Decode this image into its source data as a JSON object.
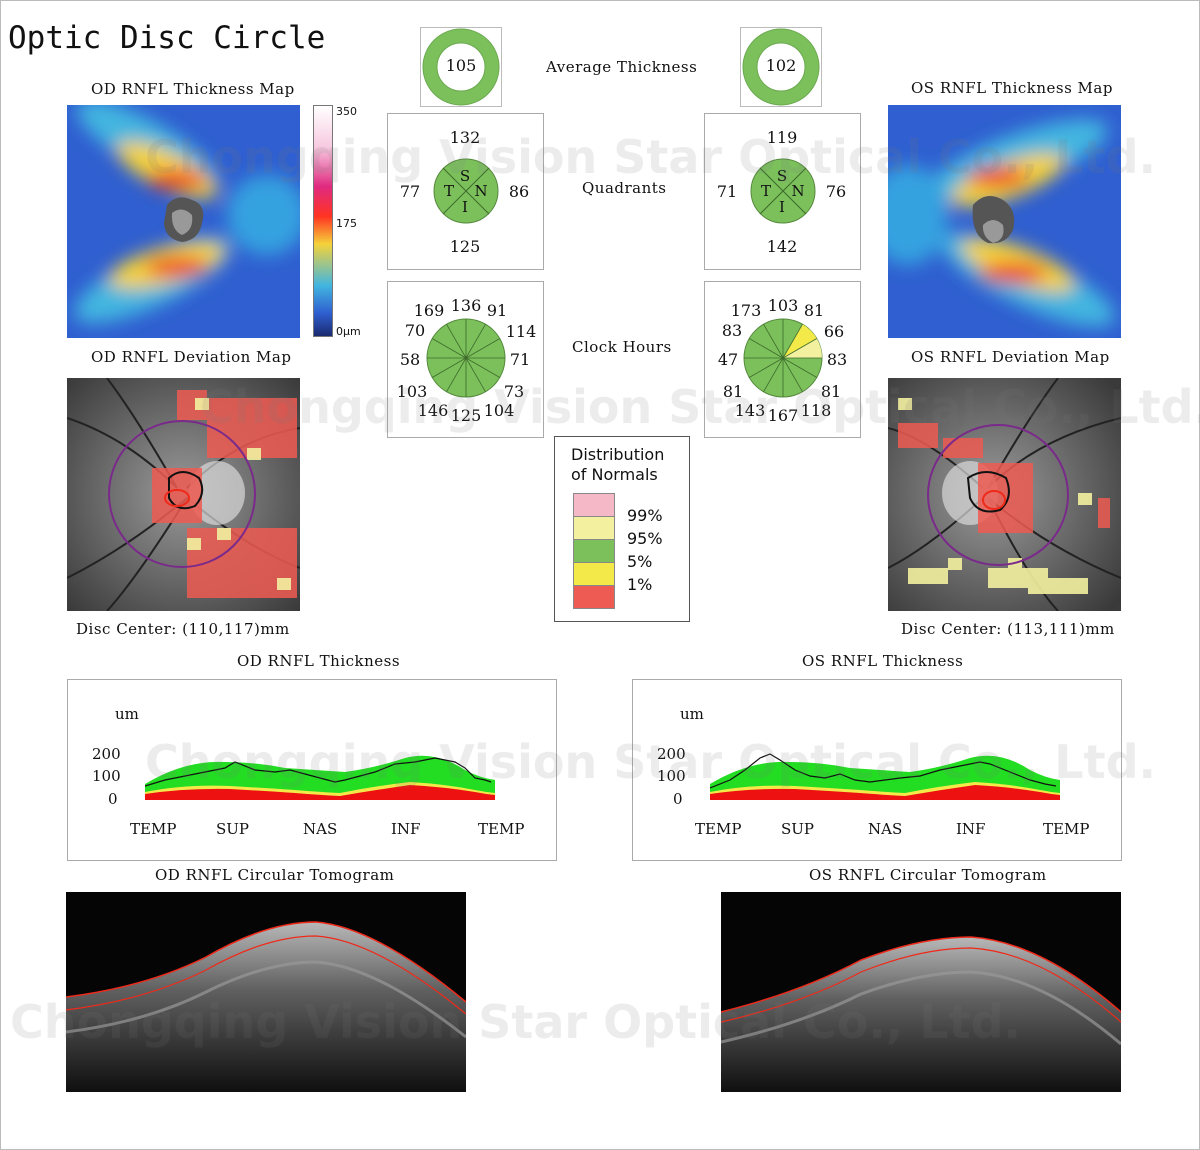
{
  "title": "Optic Disc Circle",
  "average": {
    "label": "Average Thickness",
    "od": "105",
    "os": "102"
  },
  "quadrants": {
    "label": "Quadrants",
    "od": {
      "sup": "132",
      "tmp": "77",
      "nas": "86",
      "inf": "125"
    },
    "os": {
      "sup": "119",
      "tmp": "71",
      "nas": "76",
      "inf": "142"
    },
    "letters": {
      "s": "S",
      "t": "T",
      "n": "N",
      "i": "I"
    }
  },
  "clock": {
    "label": "Clock Hours",
    "od": [
      "169",
      "136",
      "91",
      "114",
      "71",
      "73",
      "104",
      "125",
      "146",
      "103",
      "58",
      "70"
    ],
    "os": [
      "173",
      "103",
      "81",
      "66",
      "83",
      "81",
      "118",
      "167",
      "143",
      "81",
      "47",
      "83"
    ]
  },
  "od_map_title": "OD RNFL Thickness Map",
  "os_map_title": "OS RNFL Thickness Map",
  "od_dev_title": "OD RNFL Deviation Map",
  "os_dev_title": "OS RNFL Deviation Map",
  "scale": {
    "top": "350",
    "mid": "175",
    "bottom": "0μm"
  },
  "od_disc_center": "Disc Center: (110,117)mm",
  "os_disc_center": "Disc Center: (113,111)mm",
  "legend": {
    "title_line1": "Distribution",
    "title_line2": "of Normals",
    "items": [
      {
        "label": "99%",
        "color": "#f4b8c6"
      },
      {
        "label": "95%",
        "color": "#f3f0a0"
      },
      {
        "label": "5%",
        "color": "#7cc05c"
      },
      {
        "label": "1%",
        "color": "#f3ea4a"
      },
      {
        "label": "",
        "color": "#ee5b52"
      }
    ]
  },
  "od_thickness_title": "OD RNFL Thickness",
  "os_thickness_title": "OS RNFL Thickness",
  "graph": {
    "unit": "um",
    "yticks": [
      "200",
      "100",
      "0"
    ],
    "xticks": [
      "TEMP",
      "SUP",
      "NAS",
      "INF",
      "TEMP"
    ]
  },
  "od_tomo_title": "OD RNFL Circular Tomogram",
  "os_tomo_title": "OS RNFL Circular Tomogram",
  "watermark": "Chongqing Vision Star Optical Co., Ltd.",
  "colors": {
    "green": "#7cc05c",
    "yellow": "#f3ea4a",
    "red": "#ee2a1a",
    "purple": "#7a2a8a"
  }
}
